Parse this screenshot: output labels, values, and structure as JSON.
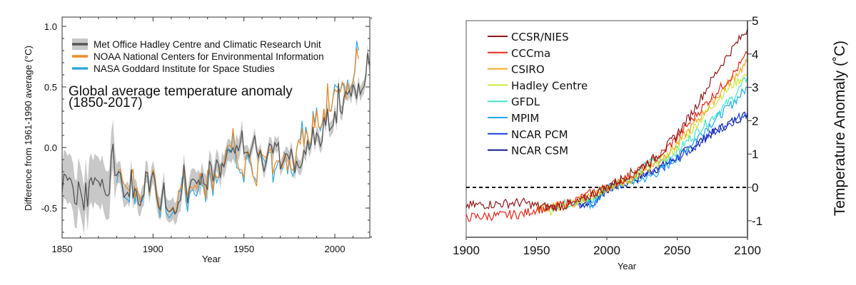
{
  "chart_data": [
    {
      "type": "line",
      "title": "Global average temperature anomaly",
      "subtitle": "(1850-2017)",
      "xlabel": "Year",
      "ylabel": "Difference from 1961-1990 average (°C)",
      "xlim": [
        1845,
        2021
      ],
      "ylim": [
        -0.75,
        1.05
      ],
      "xticks": [
        1850,
        1900,
        1950,
        2000
      ],
      "xtick_labels": [
        "1850",
        "1900",
        "1950",
        "2000"
      ],
      "yticks": [
        -0.5,
        0.0,
        0.5,
        1.0
      ],
      "ytick_labels": [
        "-0.5",
        "0.0",
        "0.5",
        "1.0"
      ],
      "grid": false,
      "legend_position": "top-left",
      "series": [
        {
          "name": "Met Office Hadley Centre and Climatic Research Unit",
          "color": "#555555",
          "band_color": "#c8c8c8",
          "x_start": 1850,
          "values": [
            -0.37,
            -0.22,
            -0.23,
            -0.27,
            -0.25,
            -0.27,
            -0.33,
            -0.46,
            -0.47,
            -0.28,
            -0.35,
            -0.42,
            -0.52,
            -0.29,
            -0.49,
            -0.28,
            -0.25,
            -0.31,
            -0.25,
            -0.27,
            -0.28,
            -0.32,
            -0.26,
            -0.34,
            -0.39,
            -0.4,
            -0.38,
            -0.07,
            0.03,
            -0.23,
            -0.23,
            -0.2,
            -0.21,
            -0.31,
            -0.41,
            -0.39,
            -0.37,
            -0.41,
            -0.18,
            -0.42,
            -0.34,
            -0.37,
            -0.47,
            -0.48,
            -0.41,
            -0.39,
            -0.2,
            -0.21,
            -0.37,
            -0.26,
            -0.2,
            -0.27,
            -0.41,
            -0.49,
            -0.51,
            -0.4,
            -0.29,
            -0.49,
            -0.52,
            -0.53,
            -0.52,
            -0.5,
            -0.55,
            -0.53,
            -0.45,
            -0.44,
            -0.33,
            -0.14,
            -0.3,
            -0.46,
            -0.34,
            -0.27,
            -0.26,
            -0.27,
            -0.3,
            -0.27,
            -0.31,
            -0.21,
            -0.3,
            -0.31,
            -0.35,
            -0.11,
            -0.15,
            -0.28,
            -0.2,
            -0.1,
            -0.14,
            -0.25,
            -0.13,
            -0.16,
            -0.1,
            -0.02,
            -0.02,
            -0.04,
            0.0,
            -0.05,
            0.02,
            -0.03,
            0.04,
            0.14,
            -0.05,
            -0.04,
            -0.04,
            -0.08,
            -0.02,
            0.04,
            0.1,
            -0.03,
            -0.08,
            -0.02,
            -0.11,
            -0.2,
            -0.14,
            -0.06,
            0.03,
            0.02,
            -0.05,
            0.04,
            0.01,
            0.04,
            -0.18,
            -0.14,
            -0.11,
            -0.05,
            -0.06,
            -0.1,
            -0.01,
            -0.1,
            -0.21,
            -0.11,
            -0.16,
            -0.17,
            -0.13,
            -0.02,
            -0.06,
            0.06,
            -0.02,
            0.03,
            0.17,
            0.02,
            0.12,
            0.09,
            0.01,
            0.05,
            0.25,
            0.18,
            0.32,
            0.14,
            0.16,
            0.18,
            0.3,
            0.2,
            0.53,
            0.3,
            0.28,
            0.41,
            0.46,
            0.44,
            0.47,
            0.42,
            0.52,
            0.48,
            0.4,
            0.53,
            0.44,
            0.48,
            0.5,
            0.58,
            0.78,
            0.68
          ]
        },
        {
          "name": "NOAA National Centers for Environmental Information",
          "color": "#f08a24",
          "x_start": 1880,
          "values": [
            -0.24,
            -0.19,
            -0.18,
            -0.26,
            -0.3,
            -0.32,
            -0.34,
            -0.36,
            -0.22,
            -0.18,
            -0.42,
            -0.33,
            -0.38,
            -0.43,
            -0.4,
            -0.39,
            -0.22,
            -0.21,
            -0.39,
            -0.27,
            -0.18,
            -0.24,
            -0.37,
            -0.45,
            -0.53,
            -0.39,
            -0.29,
            -0.48,
            -0.52,
            -0.53,
            -0.51,
            -0.49,
            -0.53,
            -0.52,
            -0.36,
            -0.34,
            -0.3,
            -0.17,
            -0.38,
            -0.39,
            -0.33,
            -0.33,
            -0.34,
            -0.31,
            -0.34,
            -0.29,
            -0.21,
            -0.29,
            -0.3,
            -0.42,
            -0.19,
            -0.18,
            -0.24,
            -0.36,
            -0.21,
            -0.25,
            -0.24,
            -0.16,
            -0.14,
            -0.14,
            -0.02,
            0.01,
            0.02,
            0.0,
            0.16,
            0.02,
            -0.08,
            -0.18,
            -0.18,
            -0.19,
            -0.25,
            -0.08,
            -0.03,
            -0.06,
            -0.13,
            -0.23,
            -0.28,
            -0.32,
            -0.05,
            -0.02,
            -0.06,
            -0.07,
            -0.09,
            -0.04,
            -0.02,
            -0.01,
            -0.22,
            -0.14,
            -0.11,
            -0.11,
            -0.12,
            -0.17,
            -0.05,
            -0.07,
            -0.19,
            -0.09,
            -0.18,
            -0.19,
            -0.15,
            -0.02,
            0.06,
            0.03,
            0.16,
            0.01,
            0.14,
            0.1,
            0.03,
            0.04,
            0.28,
            0.16,
            0.31,
            0.17,
            0.16,
            0.2,
            0.32,
            0.22,
            0.53,
            0.3,
            0.3,
            0.41,
            0.48,
            0.46,
            0.48,
            0.46,
            0.54,
            0.5,
            0.4,
            0.54,
            0.45,
            0.51,
            0.54,
            0.62,
            0.82,
            0.73
          ]
        },
        {
          "name": "NASA Goddard Institute for Space Studies",
          "color": "#2ea8e0",
          "x_start": 1880,
          "values": [
            -0.29,
            -0.21,
            -0.2,
            -0.3,
            -0.4,
            -0.42,
            -0.43,
            -0.45,
            -0.23,
            -0.18,
            -0.47,
            -0.35,
            -0.38,
            -0.45,
            -0.44,
            -0.4,
            -0.23,
            -0.24,
            -0.4,
            -0.27,
            -0.19,
            -0.25,
            -0.38,
            -0.48,
            -0.58,
            -0.41,
            -0.31,
            -0.53,
            -0.56,
            -0.58,
            -0.56,
            -0.53,
            -0.54,
            -0.52,
            -0.37,
            -0.36,
            -0.25,
            -0.23,
            -0.43,
            -0.53,
            -0.38,
            -0.36,
            -0.35,
            -0.39,
            -0.4,
            -0.34,
            -0.23,
            -0.31,
            -0.33,
            -0.45,
            -0.22,
            -0.2,
            -0.29,
            -0.4,
            -0.21,
            -0.29,
            -0.25,
            -0.14,
            -0.14,
            -0.14,
            -0.05,
            0.01,
            -0.04,
            -0.02,
            0.13,
            0.0,
            -0.17,
            -0.17,
            -0.21,
            -0.21,
            -0.29,
            -0.1,
            -0.06,
            -0.11,
            -0.16,
            -0.24,
            -0.25,
            -0.29,
            -0.08,
            -0.03,
            -0.07,
            -0.1,
            -0.13,
            -0.05,
            -0.04,
            -0.04,
            -0.29,
            -0.19,
            -0.16,
            -0.11,
            -0.12,
            -0.18,
            -0.04,
            -0.07,
            -0.22,
            -0.1,
            -0.2,
            -0.24,
            -0.16,
            -0.01,
            0.06,
            0.07,
            0.22,
            0.01,
            0.17,
            0.1,
            0.02,
            0.02,
            0.3,
            0.2,
            0.33,
            0.18,
            0.14,
            0.19,
            0.32,
            0.21,
            0.52,
            0.31,
            0.3,
            0.42,
            0.52,
            0.5,
            0.5,
            0.46,
            0.52,
            0.53,
            0.41,
            0.56,
            0.47,
            0.49,
            0.55,
            0.64,
            0.88,
            0.8
          ]
        }
      ]
    },
    {
      "type": "line",
      "title": "",
      "xlabel": "Year",
      "ylabel": "Temperature Anomaly (˚C)",
      "xlim": [
        1900,
        2100
      ],
      "ylim": [
        -1.5,
        5
      ],
      "xticks": [
        1900,
        1950,
        2000,
        2050,
        2100
      ],
      "xtick_labels": [
        "1900",
        "1950",
        "2000",
        "2050",
        "2100"
      ],
      "yticks": [
        -1,
        0,
        1,
        2,
        3,
        4,
        5
      ],
      "ytick_labels": [
        "-1",
        "0",
        "1",
        "2",
        "3",
        "4",
        "5"
      ],
      "y_axis_side": "right",
      "reference_line": {
        "y": 0,
        "style": "dashed",
        "color": "#000000"
      },
      "grid": false,
      "legend_position": "top-left",
      "series": [
        {
          "name": "CCSR/NIES",
          "color": "#8b1a1a",
          "x": [
            1900,
            1920,
            1940,
            1950,
            1960,
            1970,
            1980,
            1990,
            2000,
            2010,
            2020,
            2030,
            2040,
            2050,
            2060,
            2070,
            2080,
            2090,
            2100
          ],
          "values": [
            -0.55,
            -0.5,
            -0.45,
            -0.55,
            -0.6,
            -0.55,
            -0.45,
            -0.2,
            0.0,
            0.25,
            0.5,
            0.75,
            1.1,
            1.6,
            2.2,
            2.9,
            3.6,
            4.2,
            4.75
          ]
        },
        {
          "name": "CCCma",
          "color": "#e8281c",
          "x": [
            1900,
            1920,
            1940,
            1950,
            1960,
            1970,
            1980,
            1990,
            2000,
            2010,
            2020,
            2030,
            2040,
            2050,
            2060,
            2070,
            2080,
            2090,
            2100
          ],
          "values": [
            -0.9,
            -0.85,
            -0.8,
            -0.65,
            -0.65,
            -0.5,
            -0.35,
            -0.15,
            0.0,
            0.2,
            0.45,
            0.7,
            1.05,
            1.5,
            2.0,
            2.5,
            2.95,
            3.4,
            4.0
          ]
        },
        {
          "name": "CSIRO",
          "color": "#f5a623",
          "x": [
            1950,
            1960,
            1970,
            1980,
            1990,
            2000,
            2010,
            2020,
            2030,
            2040,
            2050,
            2060,
            2070,
            2080,
            2090,
            2100
          ],
          "values": [
            -0.6,
            -0.6,
            -0.55,
            -0.45,
            -0.2,
            0.0,
            0.15,
            0.35,
            0.6,
            0.9,
            1.3,
            1.8,
            2.3,
            2.8,
            3.3,
            3.75
          ]
        },
        {
          "name": "Hadley Centre",
          "color": "#c8ec3c",
          "x": [
            1950,
            1960,
            1970,
            1980,
            1990,
            2000,
            2010,
            2020,
            2030,
            2040,
            2050,
            2060,
            2070,
            2080,
            2090,
            2100
          ],
          "values": [
            -0.6,
            -0.7,
            -0.55,
            -0.4,
            -0.25,
            0.0,
            0.1,
            0.3,
            0.55,
            0.85,
            1.2,
            1.7,
            2.2,
            2.7,
            3.1,
            3.4
          ]
        },
        {
          "name": "GFDL",
          "color": "#3ee8d0",
          "x": [
            1960,
            1970,
            1980,
            1990,
            2000,
            2010,
            2020,
            2030,
            2040,
            2050,
            2060,
            2070,
            2080,
            2090,
            2100
          ],
          "values": [
            -0.55,
            -0.5,
            -0.4,
            -0.4,
            0.0,
            0.15,
            0.35,
            0.75,
            0.8,
            1.1,
            1.5,
            1.9,
            2.3,
            2.7,
            3.3
          ]
        },
        {
          "name": "MPIM",
          "color": "#1ea8f0",
          "x": [
            1985,
            1990,
            2000,
            2010,
            2020,
            2030,
            2040,
            2050,
            2060,
            2070,
            2080,
            2090,
            2100
          ],
          "values": [
            -0.4,
            -0.55,
            -0.05,
            0.15,
            0.2,
            0.3,
            0.55,
            0.9,
            1.3,
            1.75,
            2.15,
            2.55,
            3.0
          ]
        },
        {
          "name": "NCAR PCM",
          "color": "#1f3ce8",
          "x": [
            1980,
            1990,
            2000,
            2010,
            2020,
            2030,
            2040,
            2050,
            2060,
            2070,
            2080,
            2090,
            2100
          ],
          "values": [
            -0.5,
            -0.45,
            -0.05,
            0.1,
            0.2,
            0.4,
            0.6,
            0.85,
            1.15,
            1.5,
            1.75,
            2.0,
            2.25
          ]
        },
        {
          "name": "NCAR CSM",
          "color": "#0a1a8c",
          "x": [
            1980,
            1990,
            2000,
            2010,
            2020,
            2030,
            2040,
            2050,
            2060,
            2070,
            2080,
            2090,
            2100
          ],
          "values": [
            -0.5,
            -0.4,
            -0.05,
            0.1,
            0.25,
            0.45,
            0.65,
            0.9,
            1.2,
            1.5,
            1.75,
            2.0,
            2.2
          ]
        }
      ]
    }
  ]
}
